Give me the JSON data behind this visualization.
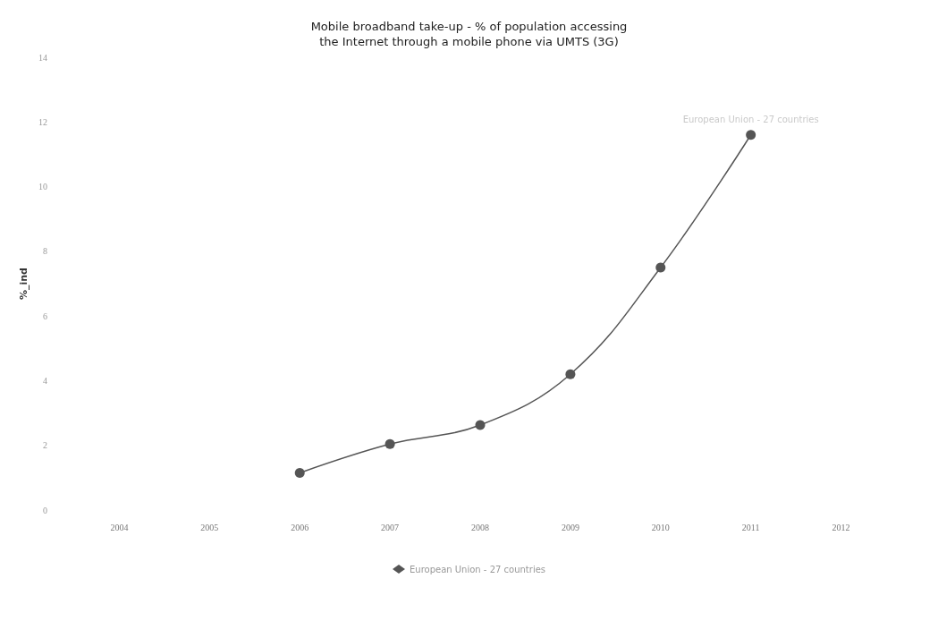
{
  "chart_data": {
    "type": "line",
    "title": "Mobile broadband take-up - % of population accessing\nthe Internet through a mobile phone via UMTS (3G)",
    "ylabel": "%_ind",
    "categories": [
      "2004",
      "2005",
      "2006",
      "2007",
      "2008",
      "2009",
      "2010",
      "2011",
      "2012"
    ],
    "series": [
      {
        "name": "European Union - 27 countries",
        "color": "#555555",
        "values": [
          null,
          null,
          1.15,
          2.04,
          2.63,
          4.2,
          7.5,
          11.6,
          null
        ]
      }
    ],
    "annotations": [
      {
        "text": "European Union - 27 countries",
        "x": "2011",
        "y": 11.6
      }
    ],
    "ylim": [
      0,
      14
    ],
    "yticks": [
      0,
      2,
      4,
      6,
      8,
      10,
      12,
      14
    ],
    "grid": false,
    "legend": "bottom",
    "marker": "circle",
    "line_style": "solid"
  }
}
